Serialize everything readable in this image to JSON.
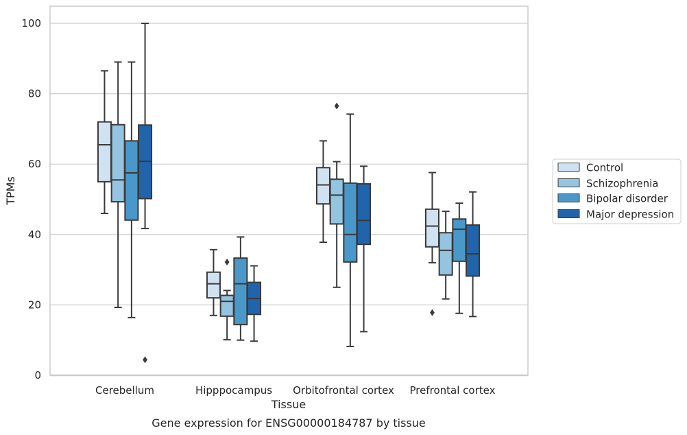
{
  "chart_data": {
    "type": "box",
    "xlabel": "Tissue",
    "ylabel": "TPMs",
    "caption": "Gene expression for ENSG00000184787 by tissue",
    "ylim": [
      0,
      105
    ],
    "yticks": [
      0,
      20,
      40,
      60,
      80,
      100
    ],
    "grid": true,
    "legend_position": "right",
    "categories": [
      "Cerebellum",
      "Hipppocampus",
      "Orbitofrontal cortex",
      "Prefrontal cortex"
    ],
    "series": [
      {
        "name": "Control",
        "color": "#d0e1f2",
        "boxes": [
          {
            "whisker_low": 46,
            "q1": 55,
            "median": 65.5,
            "q3": 72,
            "whisker_high": 86.5,
            "outliers": []
          },
          {
            "whisker_low": 17,
            "q1": 22,
            "median": 26,
            "q3": 29.3,
            "whisker_high": 35.7,
            "outliers": []
          },
          {
            "whisker_low": 37.8,
            "q1": 48.7,
            "median": 54.1,
            "q3": 59,
            "whisker_high": 66.6,
            "outliers": []
          },
          {
            "whisker_low": 32,
            "q1": 36.5,
            "median": 42.4,
            "q3": 47.2,
            "whisker_high": 57.6,
            "outliers": [
              17.8
            ]
          }
        ]
      },
      {
        "name": "Schizophrenia",
        "color": "#94c4df",
        "boxes": [
          {
            "whisker_low": 19.3,
            "q1": 49.3,
            "median": 55.5,
            "q3": 71.2,
            "whisker_high": 89,
            "outliers": []
          },
          {
            "whisker_low": 10.1,
            "q1": 16.8,
            "median": 21,
            "q3": 22.7,
            "whisker_high": 24.1,
            "outliers": [
              32.2
            ]
          },
          {
            "whisker_low": 25,
            "q1": 43,
            "median": 51.2,
            "q3": 55.7,
            "whisker_high": 60.7,
            "outliers": [
              76.5
            ]
          },
          {
            "whisker_low": 21.7,
            "q1": 28.5,
            "median": 35.5,
            "q3": 40.5,
            "whisker_high": 46.6,
            "outliers": []
          }
        ]
      },
      {
        "name": "Bipolar disorder",
        "color": "#4a98c9",
        "boxes": [
          {
            "whisker_low": 16.4,
            "q1": 44.1,
            "median": 57.5,
            "q3": 66.6,
            "whisker_high": 89,
            "outliers": []
          },
          {
            "whisker_low": 10,
            "q1": 14.4,
            "median": 26,
            "q3": 33.3,
            "whisker_high": 39.3,
            "outliers": []
          },
          {
            "whisker_low": 8.2,
            "q1": 32.2,
            "median": 40,
            "q3": 54.6,
            "whisker_high": 74.2,
            "outliers": []
          },
          {
            "whisker_low": 17.6,
            "q1": 32.4,
            "median": 41.5,
            "q3": 44.4,
            "whisker_high": 48.9,
            "outliers": []
          }
        ]
      },
      {
        "name": "Major depression",
        "color": "#2164ab",
        "boxes": [
          {
            "whisker_low": 41.7,
            "q1": 50.2,
            "median": 60.8,
            "q3": 71.1,
            "whisker_high": 100,
            "outliers": [
              4.4
            ]
          },
          {
            "whisker_low": 9.7,
            "q1": 17.3,
            "median": 21.8,
            "q3": 26.4,
            "whisker_high": 31.1,
            "outliers": []
          },
          {
            "whisker_low": 12.4,
            "q1": 37.2,
            "median": 44,
            "q3": 54.4,
            "whisker_high": 59.4,
            "outliers": []
          },
          {
            "whisker_low": 16.7,
            "q1": 28.2,
            "median": 34.5,
            "q3": 42.7,
            "whisker_high": 52.1,
            "outliers": []
          }
        ]
      }
    ]
  }
}
